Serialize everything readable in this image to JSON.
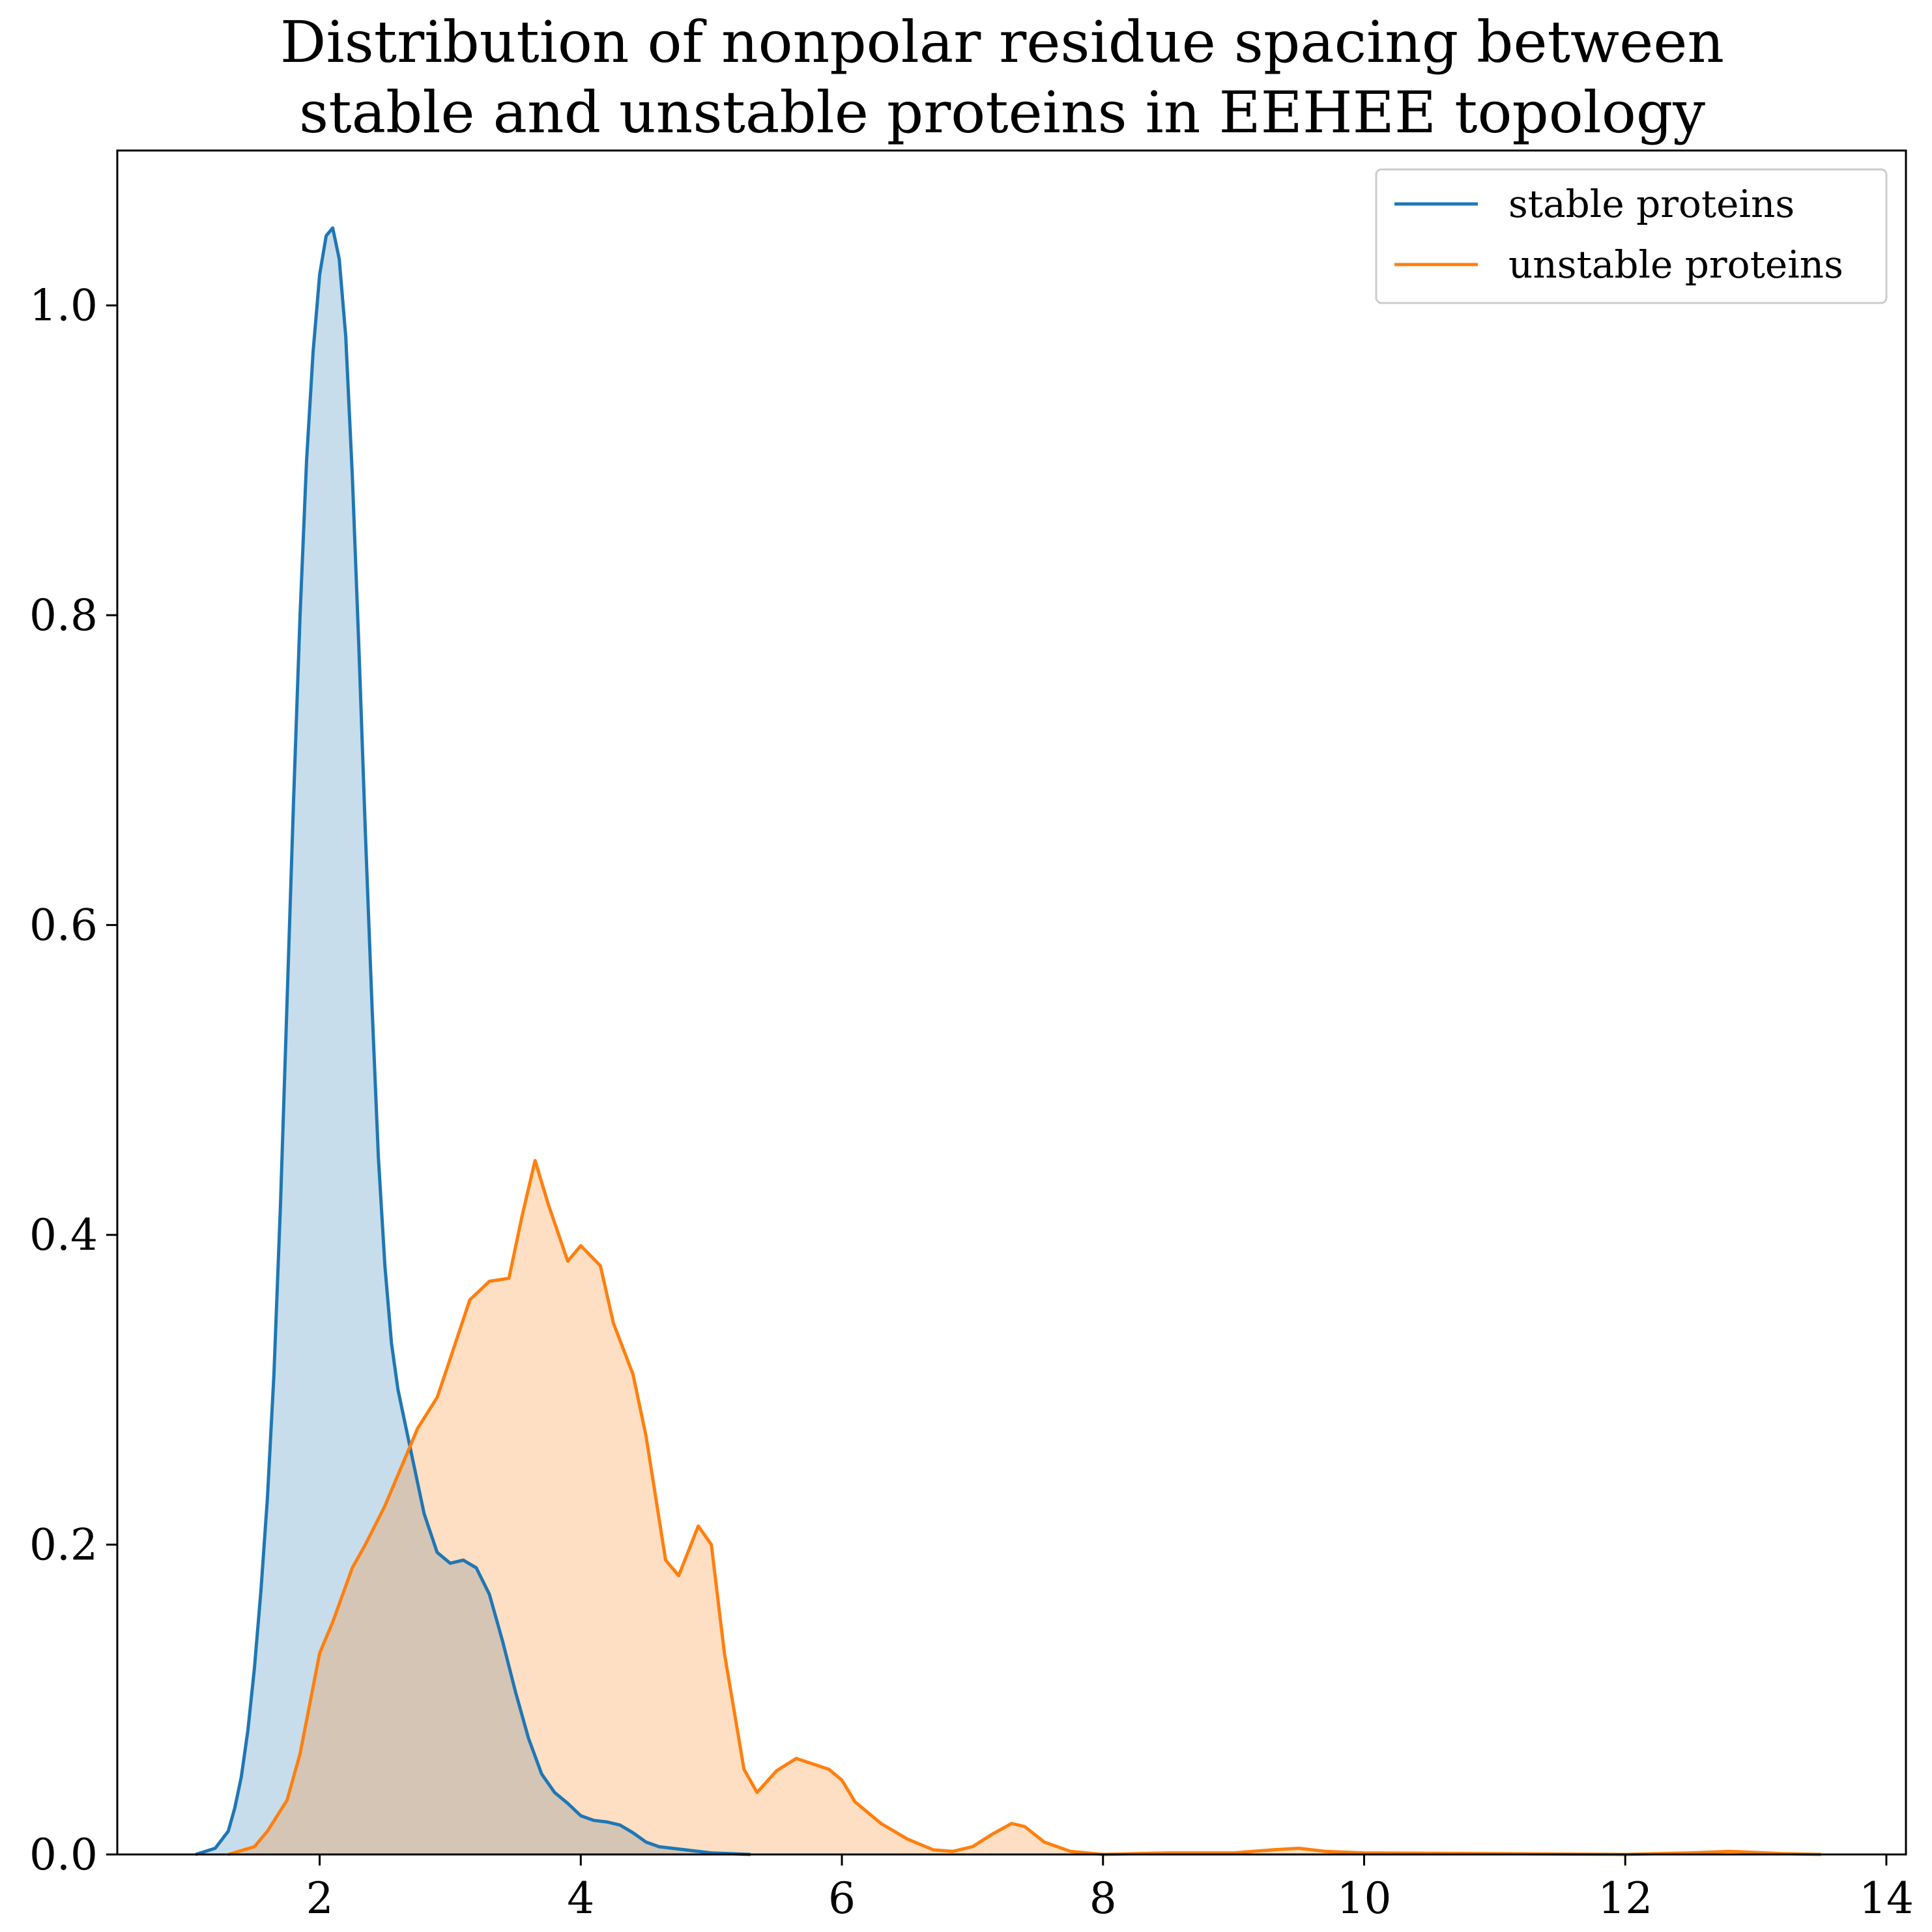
{
  "chart_data": {
    "type": "area",
    "title": "Distribution of nonpolar residue spacing between\nstable and unstable proteins in EEHEE topology",
    "title_lines": [
      "Distribution of nonpolar residue spacing between",
      "stable and unstable proteins in EEHEE topology"
    ],
    "xlabel": "",
    "ylabel": "",
    "xlim": [
      0.45,
      14.15
    ],
    "ylim": [
      0.0,
      1.1
    ],
    "xticks": [
      2,
      4,
      6,
      8,
      10,
      12,
      14
    ],
    "xtick_labels": [
      "2",
      "4",
      "6",
      "8",
      "10",
      "12",
      "14"
    ],
    "yticks": [
      0.0,
      0.2,
      0.4,
      0.6,
      0.8,
      1.0
    ],
    "ytick_labels": [
      "0.0",
      "0.2",
      "0.4",
      "0.6",
      "0.8",
      "1.0"
    ],
    "grid": false,
    "legend": {
      "placement": "top-right"
    },
    "series": [
      {
        "name": "stable proteins",
        "color": "#1f77b4",
        "fill_color": "#c6dbed",
        "x": [
          1.05,
          1.2,
          1.3,
          1.35,
          1.4,
          1.45,
          1.5,
          1.55,
          1.6,
          1.65,
          1.7,
          1.75,
          1.8,
          1.85,
          1.9,
          1.95,
          2.0,
          2.05,
          2.1,
          2.15,
          2.2,
          2.25,
          2.3,
          2.35,
          2.4,
          2.45,
          2.5,
          2.55,
          2.6,
          2.7,
          2.8,
          2.9,
          3.0,
          3.1,
          3.2,
          3.3,
          3.4,
          3.5,
          3.6,
          3.7,
          3.8,
          3.9,
          4.0,
          4.1,
          4.2,
          4.3,
          4.4,
          4.5,
          4.6,
          4.7,
          4.8,
          5.0,
          5.3
        ],
        "y": [
          0.0,
          0.004,
          0.015,
          0.03,
          0.05,
          0.08,
          0.12,
          0.17,
          0.23,
          0.31,
          0.42,
          0.55,
          0.68,
          0.8,
          0.9,
          0.97,
          1.02,
          1.045,
          1.05,
          1.03,
          0.98,
          0.89,
          0.78,
          0.66,
          0.55,
          0.45,
          0.38,
          0.33,
          0.3,
          0.26,
          0.22,
          0.195,
          0.188,
          0.19,
          0.185,
          0.168,
          0.138,
          0.105,
          0.075,
          0.052,
          0.04,
          0.033,
          0.025,
          0.022,
          0.021,
          0.019,
          0.014,
          0.008,
          0.005,
          0.004,
          0.003,
          0.001,
          0.0
        ]
      },
      {
        "name": "unstable proteins",
        "color": "#ff7f0e",
        "fill_color": "#fddcbf",
        "x": [
          1.3,
          1.5,
          1.6,
          1.75,
          1.85,
          2.0,
          2.1,
          2.25,
          2.35,
          2.5,
          2.65,
          2.75,
          2.9,
          3.0,
          3.15,
          3.3,
          3.45,
          3.55,
          3.65,
          3.75,
          3.9,
          4.0,
          4.15,
          4.25,
          4.4,
          4.5,
          4.65,
          4.75,
          4.9,
          5.0,
          5.1,
          5.25,
          5.35,
          5.5,
          5.65,
          5.9,
          6.0,
          6.1,
          6.3,
          6.5,
          6.7,
          6.85,
          7.0,
          7.15,
          7.3,
          7.4,
          7.55,
          7.75,
          8.0,
          8.5,
          9.0,
          9.3,
          9.5,
          9.7,
          10.0,
          11.0,
          12.0,
          12.5,
          12.8,
          13.2,
          13.5
        ],
        "y": [
          0.0,
          0.005,
          0.015,
          0.035,
          0.065,
          0.13,
          0.15,
          0.185,
          0.2,
          0.225,
          0.255,
          0.275,
          0.295,
          0.32,
          0.358,
          0.37,
          0.372,
          0.412,
          0.448,
          0.42,
          0.383,
          0.393,
          0.38,
          0.343,
          0.31,
          0.27,
          0.19,
          0.18,
          0.212,
          0.2,
          0.13,
          0.055,
          0.04,
          0.054,
          0.062,
          0.055,
          0.048,
          0.034,
          0.02,
          0.01,
          0.003,
          0.002,
          0.005,
          0.013,
          0.02,
          0.018,
          0.008,
          0.002,
          0.0,
          0.001,
          0.001,
          0.003,
          0.004,
          0.002,
          0.001,
          0.0005,
          0.0,
          0.001,
          0.002,
          0.0005,
          0.0
        ]
      }
    ]
  }
}
